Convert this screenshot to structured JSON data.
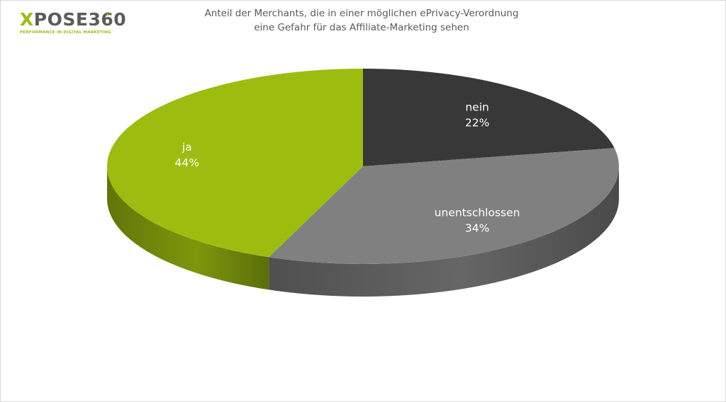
{
  "logo": {
    "wordmark_x": "X",
    "wordmark_rest": "POSE360",
    "registered": "®",
    "tagline": "PERFORMANCE IN DIGITAL MARKETING",
    "accent_color": "#9cbd0f"
  },
  "chart_data": {
    "type": "pie",
    "style": "3d",
    "title_lines": [
      "Anteil der Merchants, die in einer möglichen ePrivacy-Verordnung",
      "eine Gefahr für das Affiliate-Marketing sehen"
    ],
    "slices": [
      {
        "label": "nein",
        "value": 22,
        "value_label": "22%",
        "color": "#383838",
        "label_color": "#ffffff"
      },
      {
        "label": "unentschlossen",
        "value": 34,
        "value_label": "34%",
        "color": "#808080",
        "label_color": "#ffffff"
      },
      {
        "label": "ja",
        "value": 44,
        "value_label": "44%",
        "color": "#9cbd0f",
        "label_color": "#ffffff"
      }
    ],
    "legend": "none",
    "data_labels": "inside"
  }
}
